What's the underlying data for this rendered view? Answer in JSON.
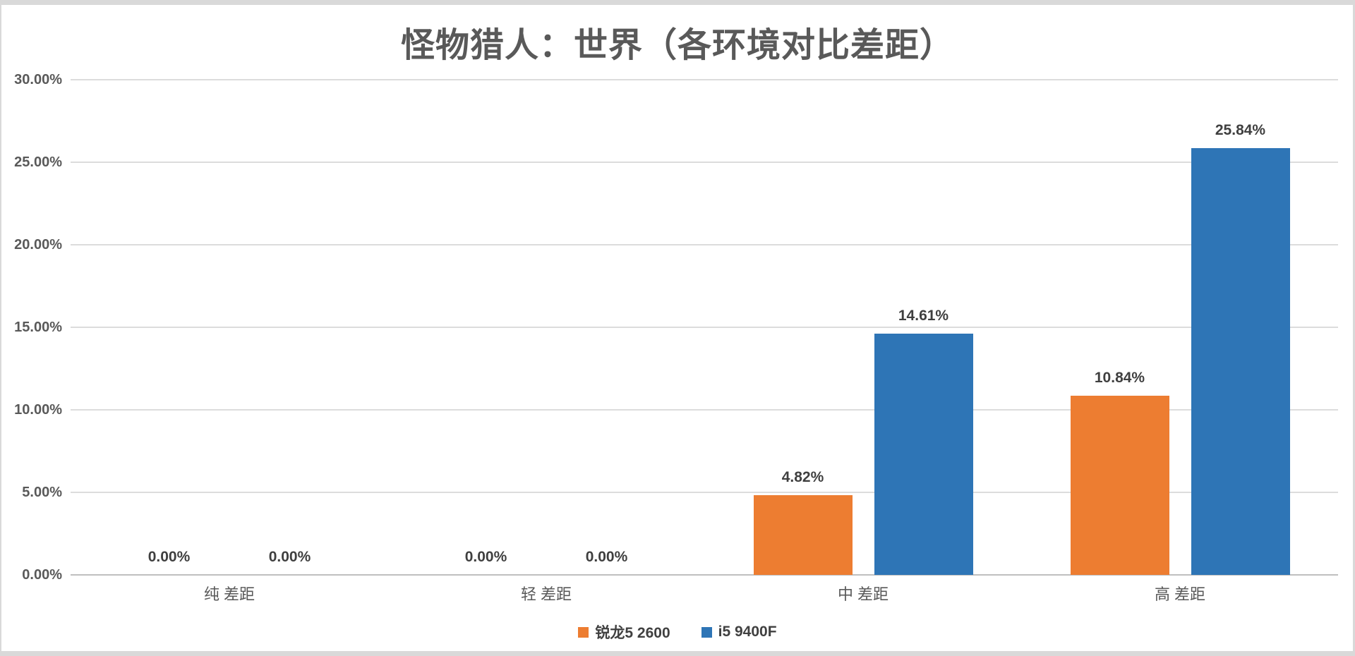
{
  "frame": {
    "background": "#FFFFFF",
    "border_color": "#D9D9D9"
  },
  "chart_data": {
    "type": "bar",
    "title": "怪物猎人：世界（各环境对比差距）",
    "categories": [
      "纯 差距",
      "轻 差距",
      "中 差距",
      "高 差距"
    ],
    "series": [
      {
        "name": "锐龙5 2600",
        "color": "#ED7D31",
        "values": [
          0,
          0,
          4.82,
          10.84
        ],
        "labels": [
          "0.00%",
          "0.00%",
          "4.82%",
          "10.84%"
        ]
      },
      {
        "name": "i5 9400F",
        "color": "#2E75B6",
        "values": [
          0,
          0,
          14.61,
          25.84
        ],
        "labels": [
          "0.00%",
          "0.00%",
          "14.61%",
          "25.84%"
        ]
      }
    ],
    "xlabel": "",
    "ylabel": "",
    "ylim": [
      0,
      30
    ],
    "y_ticks": [
      {
        "value": 30,
        "label": "30.00%"
      },
      {
        "value": 25,
        "label": "25.00%"
      },
      {
        "value": 20,
        "label": "20.00%"
      },
      {
        "value": 15,
        "label": "15.00%"
      },
      {
        "value": 10,
        "label": "10.00%"
      },
      {
        "value": 5,
        "label": "5.00%"
      },
      {
        "value": 0,
        "label": "0.00%"
      }
    ],
    "grid": true,
    "legend_position": "bottom",
    "styles": {
      "gridline_color": "#DCDCDC",
      "axis_line_color": "#BFBFBF",
      "tick_label_color": "#595959",
      "category_label_color": "#595959",
      "data_label_color": "#3F3F3F",
      "legend_label_color": "#404040",
      "title_color": "#595959"
    }
  }
}
